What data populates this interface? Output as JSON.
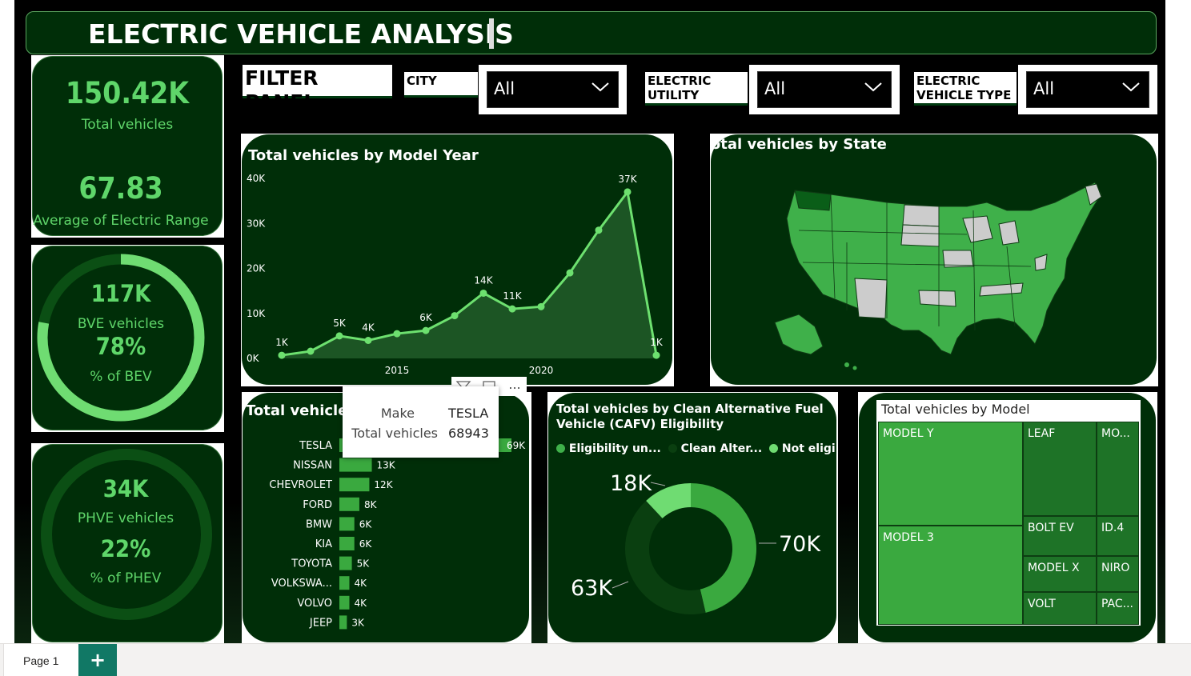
{
  "title": "ELECTRIC VEHICLE ANALYSIS",
  "kpis": {
    "total_vehicles_value": "150.42K",
    "total_vehicles_label": "Total vehicles",
    "avg_range_value": "67.83",
    "avg_range_label": "Average of Electric Range",
    "bev_count": "117K",
    "bev_label": "BVE vehicles",
    "bev_pct": "78%",
    "bev_pct_label": "% of BEV",
    "bev_share": 0.78,
    "phev_count": "34K",
    "phev_label": "PHVE vehicles",
    "phev_pct": "22%",
    "phev_pct_label": "% of PHEV",
    "phev_share": 0.22
  },
  "filters": {
    "panel_title": "FILTER PANEL",
    "city_label": "CITY",
    "city_value": "All",
    "utility_label_1": "ELECTRIC",
    "utility_label_2": "UTILITY",
    "utility_value": "All",
    "type_label_1": "ELECTRIC",
    "type_label_2": "VEHICLE TYPE",
    "type_value": "All"
  },
  "model_year_chart": {
    "title": "Total vehicles by Model Year",
    "y_ticks": [
      "40K",
      "30K",
      "20K",
      "10K",
      "0K"
    ],
    "x_ticks": [
      "2015",
      "2020"
    ]
  },
  "state_map": {
    "title": "Total vehicles by State"
  },
  "make_chart": {
    "title": "Total vehicles by Make",
    "visual_header_more": "..."
  },
  "tooltip": {
    "make_label": "Make",
    "make_value": "TESLA",
    "total_label": "Total vehicles",
    "total_value": "68943"
  },
  "cafv_chart": {
    "title_line1": "Total vehicles by Clean Alternative Fuel",
    "title_line2": "Vehicle (CAFV) Eligibility",
    "legend": [
      "Eligibility un...",
      "Clean Alter...",
      "Not eligi..."
    ],
    "labels": [
      "18K",
      "70K",
      "63K"
    ]
  },
  "model_tree": {
    "title": "Total vehicles by Model",
    "cells": [
      "MODEL Y",
      "MODEL 3",
      "LEAF",
      "MO...",
      "BOLT EV",
      "ID.4",
      "MODEL X",
      "NIRO",
      "VOLT",
      "PAC..."
    ]
  },
  "colors": {
    "panel_bg": "#002e08",
    "accent": "#5fd66a",
    "line": "#6de06f",
    "bar": "#3aa93f",
    "map_state": "#3fb04a",
    "map_gray": "#cccccc"
  },
  "bottom_bar": {
    "page_tab": "Page 1",
    "add_button": "+"
  },
  "chart_data": [
    {
      "type": "area",
      "title": "Total vehicles by Model Year",
      "x": [
        2011,
        2012,
        2013,
        2014,
        2015,
        2016,
        2017,
        2018,
        2019,
        2020,
        2021,
        2022,
        2023,
        2024
      ],
      "values": [
        700,
        1600,
        5000,
        4000,
        5500,
        6200,
        9500,
        14500,
        11000,
        11500,
        19000,
        28500,
        37000,
        700
      ],
      "data_labels": {
        "2011": "1K",
        "2013": "5K",
        "2014": "4K",
        "2016": "6K",
        "2018": "14K",
        "2019": "11K",
        "2023": "37K",
        "2024": "1K"
      },
      "ylim": [
        0,
        40000
      ],
      "xlabel": "",
      "ylabel": ""
    },
    {
      "type": "bar",
      "title": "Total vehicles by Make",
      "categories": [
        "TESLA",
        "NISSAN",
        "CHEVROLET",
        "FORD",
        "BMW",
        "KIA",
        "TOYOTA",
        "VOLKSWA...",
        "VOLVO",
        "JEEP"
      ],
      "values": [
        68943,
        13000,
        12000,
        8000,
        6000,
        6000,
        5000,
        4000,
        4000,
        3000
      ],
      "data_labels": [
        "69K",
        "13K",
        "12K",
        "8K",
        "6K",
        "6K",
        "5K",
        "4K",
        "4K",
        "3K"
      ]
    },
    {
      "type": "pie",
      "title": "Total vehicles by Clean Alternative Fuel Vehicle (CAFV) Eligibility",
      "categories": [
        "Eligibility un...",
        "Clean Alter...",
        "Not eligi..."
      ],
      "values": [
        70000,
        63000,
        18000
      ],
      "data_labels": [
        "70K",
        "63K",
        "18K"
      ]
    }
  ]
}
